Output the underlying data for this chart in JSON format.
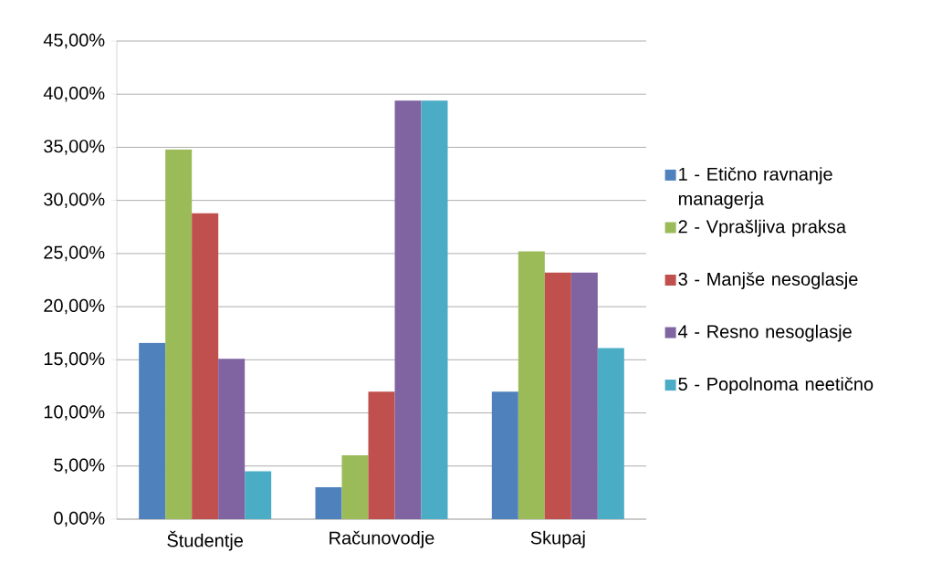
{
  "chart_data": {
    "type": "bar",
    "categories": [
      "Študentje",
      "Računovodje",
      "Skupaj"
    ],
    "series": [
      {
        "name": "1 - Etično ravnanje managerja",
        "color": "#4f81bd",
        "values": [
          16.6,
          3.0,
          12.0
        ]
      },
      {
        "name": "2 - Vprašljiva praksa",
        "color": "#9bbb59",
        "values": [
          34.8,
          6.0,
          25.2
        ]
      },
      {
        "name": "3 - Manjše nesoglasje",
        "color": "#c0504d",
        "values": [
          28.8,
          12.0,
          23.2
        ]
      },
      {
        "name": "4 - Resno nesoglasje",
        "color": "#8064a2",
        "values": [
          15.1,
          39.4,
          23.2
        ]
      },
      {
        "name": "5 - Popolnoma neetično",
        "color": "#4bacc6",
        "values": [
          4.5,
          39.4,
          16.1
        ]
      }
    ],
    "ylim": [
      0,
      45
    ],
    "yticks": [
      {
        "value": 0,
        "label": "0,00%"
      },
      {
        "value": 5,
        "label": "5,00%"
      },
      {
        "value": 10,
        "label": "10,00%"
      },
      {
        "value": 15,
        "label": "15,00%"
      },
      {
        "value": 20,
        "label": "20,00%"
      },
      {
        "value": 25,
        "label": "25,00%"
      },
      {
        "value": 30,
        "label": "30,00%"
      },
      {
        "value": 35,
        "label": "35,00%"
      },
      {
        "value": 40,
        "label": "40,00%"
      },
      {
        "value": 45,
        "label": "45,00%"
      }
    ],
    "grid": "y",
    "legend": "right"
  }
}
